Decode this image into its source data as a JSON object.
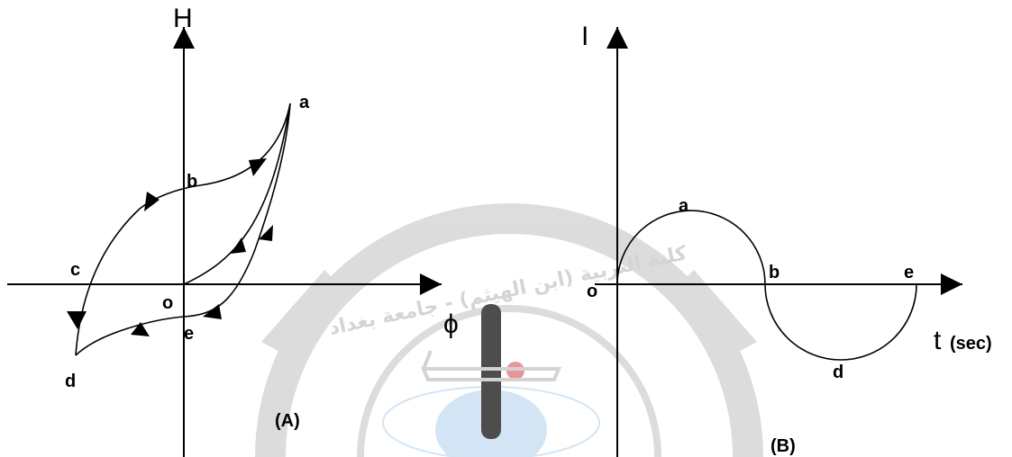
{
  "panel_a": {
    "vertical_axis_label": "H",
    "horizontal_axis_label": "ϕ",
    "points": {
      "a": "a",
      "b": "b",
      "c": "c",
      "d": "d",
      "e": "e",
      "o": "o"
    },
    "caption": "(A)"
  },
  "panel_b": {
    "vertical_axis_label": "I",
    "horizontal_axis_label": "t",
    "horizontal_axis_unit": "(sec)",
    "points": {
      "a": "a",
      "b": "b",
      "d": "d",
      "e": "e",
      "o": "o"
    },
    "caption": "(B)"
  },
  "watermark": {
    "arabic_text": "كلية التربية (ابن الهيثم) - جامعة بغداد",
    "colors": {
      "ring": "#d9d9d9",
      "globe": "#cfe3f5",
      "pen": "#3a3a3a",
      "dot": "#e88a8a"
    }
  },
  "colors": {
    "ink": "#000000",
    "background": "#ffffff"
  }
}
